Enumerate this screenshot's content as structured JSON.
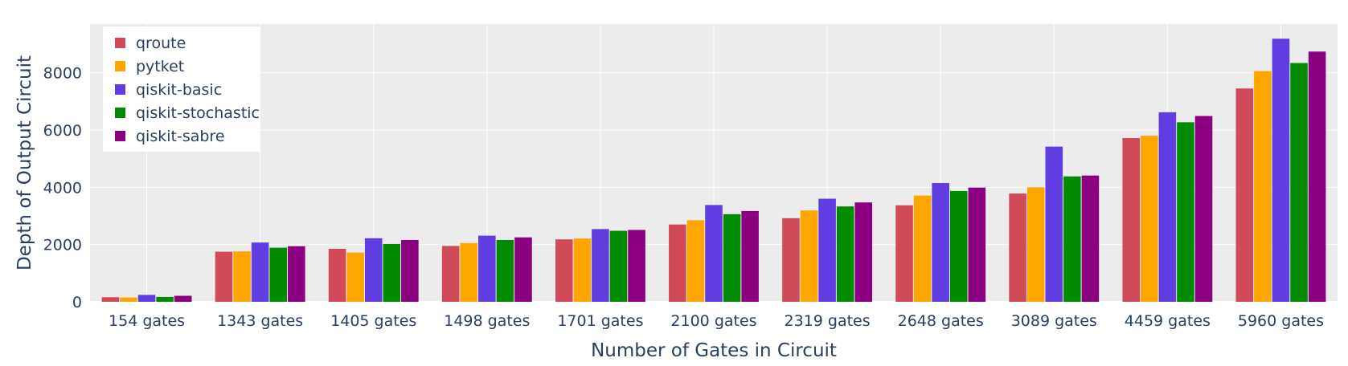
{
  "chart_data": {
    "type": "bar",
    "title": "",
    "xlabel": "Number of Gates in Circuit",
    "ylabel": "Depth of Output Circuit",
    "ylim": [
      0,
      9700
    ],
    "yticks": [
      0,
      2000,
      4000,
      6000,
      8000
    ],
    "grid": true,
    "legend_position": "top-left",
    "categories": [
      "154 gates",
      "1343 gates",
      "1405 gates",
      "1498 gates",
      "1701 gates",
      "2100 gates",
      "2319 gates",
      "2648 gates",
      "3089 gates",
      "4459 gates",
      "5960 gates"
    ],
    "series": [
      {
        "name": "qroute",
        "color": "#d04a5a",
        "values": [
          160,
          1750,
          1850,
          1950,
          2180,
          2700,
          2920,
          3370,
          3780,
          5720,
          7450
        ]
      },
      {
        "name": "pytket",
        "color": "#ffa500",
        "values": [
          150,
          1760,
          1720,
          2050,
          2210,
          2850,
          3190,
          3710,
          4000,
          5800,
          8060
        ]
      },
      {
        "name": "qiskit-basic",
        "color": "#5f3de0",
        "values": [
          240,
          2070,
          2220,
          2310,
          2540,
          3380,
          3600,
          4150,
          5420,
          6620,
          9190
        ]
      },
      {
        "name": "qiskit-stochastic",
        "color": "#008b00",
        "values": [
          170,
          1890,
          2020,
          2160,
          2480,
          3060,
          3330,
          3870,
          4380,
          6270,
          8340
        ]
      },
      {
        "name": "qiskit-sabre",
        "color": "#8b0080",
        "values": [
          210,
          1940,
          2160,
          2250,
          2510,
          3170,
          3470,
          3990,
          4410,
          6490,
          8740
        ]
      }
    ]
  }
}
